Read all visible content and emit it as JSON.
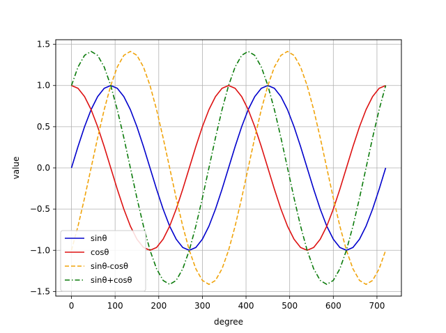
{
  "chart_data": {
    "type": "line",
    "xlabel": "degree",
    "ylabel": "value",
    "xlim": [
      -36,
      756
    ],
    "ylim": [
      -1.556,
      1.556
    ],
    "x_ticks": [
      0,
      100,
      200,
      300,
      400,
      500,
      600,
      700
    ],
    "y_ticks": [
      -1.5,
      -1.0,
      -0.5,
      0.0,
      0.5,
      1.0,
      1.5
    ],
    "x_tick_labels": [
      "0",
      "100",
      "200",
      "300",
      "400",
      "500",
      "600",
      "700"
    ],
    "y_tick_labels": [
      "−1.5",
      "−1.0",
      "−0.5",
      "0.0",
      "0.5",
      "1.0",
      "1.5"
    ],
    "grid": true,
    "legend_position": "lower left",
    "x": [
      0,
      15,
      30,
      45,
      60,
      75,
      90,
      105,
      120,
      135,
      150,
      165,
      180,
      195,
      210,
      225,
      240,
      255,
      270,
      285,
      300,
      315,
      330,
      345,
      360,
      375,
      390,
      405,
      420,
      435,
      450,
      465,
      480,
      495,
      510,
      525,
      540,
      555,
      570,
      585,
      600,
      615,
      630,
      645,
      660,
      675,
      690,
      705,
      720
    ],
    "series": [
      {
        "name": "sinθ",
        "color": "#0000cc",
        "dash": "solid",
        "values": [
          0.0,
          0.259,
          0.5,
          0.707,
          0.866,
          0.966,
          1.0,
          0.966,
          0.866,
          0.707,
          0.5,
          0.259,
          0.0,
          -0.259,
          -0.5,
          -0.707,
          -0.866,
          -0.966,
          -1.0,
          -0.966,
          -0.866,
          -0.707,
          -0.5,
          -0.259,
          0.0,
          0.259,
          0.5,
          0.707,
          0.866,
          0.966,
          1.0,
          0.966,
          0.866,
          0.707,
          0.5,
          0.259,
          0.0,
          -0.259,
          -0.5,
          -0.707,
          -0.866,
          -0.966,
          -1.0,
          -0.966,
          -0.866,
          -0.707,
          -0.5,
          -0.259,
          0.0
        ]
      },
      {
        "name": "cosθ",
        "color": "#dd1111",
        "dash": "solid",
        "values": [
          1.0,
          0.966,
          0.866,
          0.707,
          0.5,
          0.259,
          0.0,
          -0.259,
          -0.5,
          -0.707,
          -0.866,
          -0.966,
          -1.0,
          -0.966,
          -0.866,
          -0.707,
          -0.5,
          -0.259,
          0.0,
          0.259,
          0.5,
          0.707,
          0.866,
          0.966,
          1.0,
          0.966,
          0.866,
          0.707,
          0.5,
          0.259,
          0.0,
          -0.259,
          -0.5,
          -0.707,
          -0.866,
          -0.966,
          -1.0,
          -0.966,
          -0.866,
          -0.707,
          -0.5,
          -0.259,
          0.0,
          0.259,
          0.5,
          0.707,
          0.866,
          0.966,
          1.0
        ]
      },
      {
        "name": "sinθ-cosθ",
        "color": "#f0a30a",
        "dash": "dashed",
        "values": [
          -1.0,
          -0.707,
          -0.366,
          0.0,
          0.366,
          0.707,
          1.0,
          1.225,
          1.366,
          1.414,
          1.366,
          1.225,
          1.0,
          0.707,
          0.366,
          0.0,
          -0.366,
          -0.707,
          -1.0,
          -1.225,
          -1.366,
          -1.414,
          -1.366,
          -1.225,
          -1.0,
          -0.707,
          -0.366,
          0.0,
          0.366,
          0.707,
          1.0,
          1.225,
          1.366,
          1.414,
          1.366,
          1.225,
          1.0,
          0.707,
          0.366,
          0.0,
          -0.366,
          -0.707,
          -1.0,
          -1.225,
          -1.366,
          -1.414,
          -1.366,
          -1.225,
          -1.0
        ]
      },
      {
        "name": "sinθ+cosθ",
        "color": "#0a7a0a",
        "dash": "dashdot",
        "values": [
          1.0,
          1.225,
          1.366,
          1.414,
          1.366,
          1.225,
          1.0,
          0.707,
          0.366,
          0.0,
          -0.366,
          -0.707,
          -1.0,
          -1.225,
          -1.366,
          -1.414,
          -1.366,
          -1.225,
          -1.0,
          -0.707,
          -0.366,
          0.0,
          0.366,
          0.707,
          1.0,
          1.225,
          1.366,
          1.414,
          1.366,
          1.225,
          1.0,
          0.707,
          0.366,
          0.0,
          -0.366,
          -0.707,
          -1.0,
          -1.225,
          -1.366,
          -1.414,
          -1.366,
          -1.225,
          -1.0,
          -0.707,
          -0.366,
          0.0,
          0.366,
          0.707,
          1.0
        ]
      }
    ]
  }
}
